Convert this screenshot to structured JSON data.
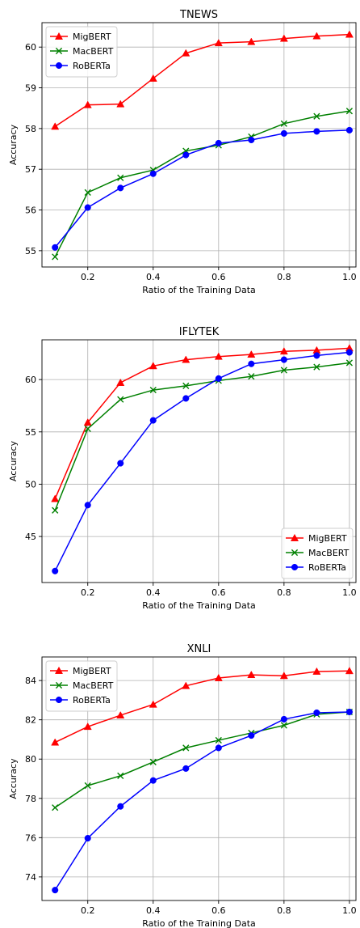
{
  "chart_data": [
    {
      "type": "line",
      "title": "TNEWS",
      "xlabel": "Ratio of the Training Data",
      "ylabel": "Accuracy",
      "x": [
        0.1,
        0.2,
        0.3,
        0.4,
        0.5,
        0.6,
        0.7,
        0.8,
        0.9,
        1.0
      ],
      "xlim": [
        0.06,
        1.02
      ],
      "ylim": [
        54.6,
        60.6
      ],
      "xticks": [
        0.2,
        0.4,
        0.6,
        0.8,
        1.0
      ],
      "xtick_labels": [
        "0.2",
        "0.4",
        "0.6",
        "0.8",
        "1.0"
      ],
      "yticks": [
        55,
        56,
        57,
        58,
        59,
        60
      ],
      "ytick_labels": [
        "55",
        "56",
        "57",
        "58",
        "59",
        "60"
      ],
      "grid": true,
      "legend_position": "top-left",
      "series": [
        {
          "name": "MigBERT",
          "color": "#ff0000",
          "marker": "triangle",
          "values": [
            58.05,
            58.58,
            58.6,
            59.23,
            59.85,
            60.1,
            60.13,
            60.21,
            60.27,
            60.31
          ]
        },
        {
          "name": "MacBERT",
          "color": "#008000",
          "marker": "x",
          "values": [
            54.85,
            56.43,
            56.79,
            56.98,
            57.45,
            57.59,
            57.8,
            58.12,
            58.3,
            58.43
          ]
        },
        {
          "name": "RoBERTa",
          "color": "#0000ff",
          "marker": "circle",
          "values": [
            55.08,
            56.06,
            56.54,
            56.89,
            57.35,
            57.64,
            57.72,
            57.88,
            57.93,
            57.96
          ]
        }
      ]
    },
    {
      "type": "line",
      "title": "IFLYTEK",
      "xlabel": "Ratio of the Training Data",
      "ylabel": "Accuracy",
      "x": [
        0.1,
        0.2,
        0.3,
        0.4,
        0.5,
        0.6,
        0.7,
        0.8,
        0.9,
        1.0
      ],
      "xlim": [
        0.06,
        1.02
      ],
      "ylim": [
        40.6,
        63.8
      ],
      "xticks": [
        0.2,
        0.4,
        0.6,
        0.8,
        1.0
      ],
      "xtick_labels": [
        "0.2",
        "0.4",
        "0.6",
        "0.8",
        "1.0"
      ],
      "yticks": [
        45,
        50,
        55,
        60
      ],
      "ytick_labels": [
        "45",
        "50",
        "55",
        "60"
      ],
      "grid": true,
      "legend_position": "bottom-right",
      "series": [
        {
          "name": "MigBERT",
          "color": "#ff0000",
          "marker": "triangle",
          "values": [
            48.6,
            55.9,
            59.7,
            61.3,
            61.9,
            62.2,
            62.4,
            62.7,
            62.8,
            63.0
          ]
        },
        {
          "name": "MacBERT",
          "color": "#008000",
          "marker": "x",
          "values": [
            47.5,
            55.3,
            58.1,
            59.0,
            59.4,
            59.9,
            60.3,
            60.9,
            61.2,
            61.6
          ]
        },
        {
          "name": "RoBERTa",
          "color": "#0000ff",
          "marker": "circle",
          "values": [
            41.7,
            48.0,
            52.0,
            56.1,
            58.2,
            60.1,
            61.5,
            61.9,
            62.3,
            62.6
          ]
        }
      ]
    },
    {
      "type": "line",
      "title": "XNLI",
      "xlabel": "Ratio of the Training Data",
      "ylabel": "Accuracy",
      "x": [
        0.1,
        0.2,
        0.3,
        0.4,
        0.5,
        0.6,
        0.7,
        0.8,
        0.9,
        1.0
      ],
      "xlim": [
        0.06,
        1.02
      ],
      "ylim": [
        72.8,
        85.2
      ],
      "xticks": [
        0.2,
        0.4,
        0.6,
        0.8,
        1.0
      ],
      "xtick_labels": [
        "0.2",
        "0.4",
        "0.6",
        "0.8",
        "1.0"
      ],
      "yticks": [
        74,
        76,
        78,
        80,
        82,
        84
      ],
      "ytick_labels": [
        "74",
        "76",
        "78",
        "80",
        "82",
        "84"
      ],
      "grid": true,
      "legend_position": "top-left",
      "series": [
        {
          "name": "MigBERT",
          "color": "#ff0000",
          "marker": "triangle",
          "values": [
            80.85,
            81.65,
            82.23,
            82.78,
            83.73,
            84.13,
            84.29,
            84.24,
            84.46,
            84.49
          ]
        },
        {
          "name": "MacBERT",
          "color": "#008000",
          "marker": "x",
          "values": [
            77.53,
            78.65,
            79.15,
            79.85,
            80.57,
            80.96,
            81.33,
            81.72,
            82.28,
            82.4
          ]
        },
        {
          "name": "RoBERTa",
          "color": "#0000ff",
          "marker": "circle",
          "values": [
            73.33,
            75.97,
            77.59,
            78.91,
            79.52,
            80.57,
            81.2,
            82.03,
            82.36,
            82.4
          ]
        }
      ]
    }
  ]
}
